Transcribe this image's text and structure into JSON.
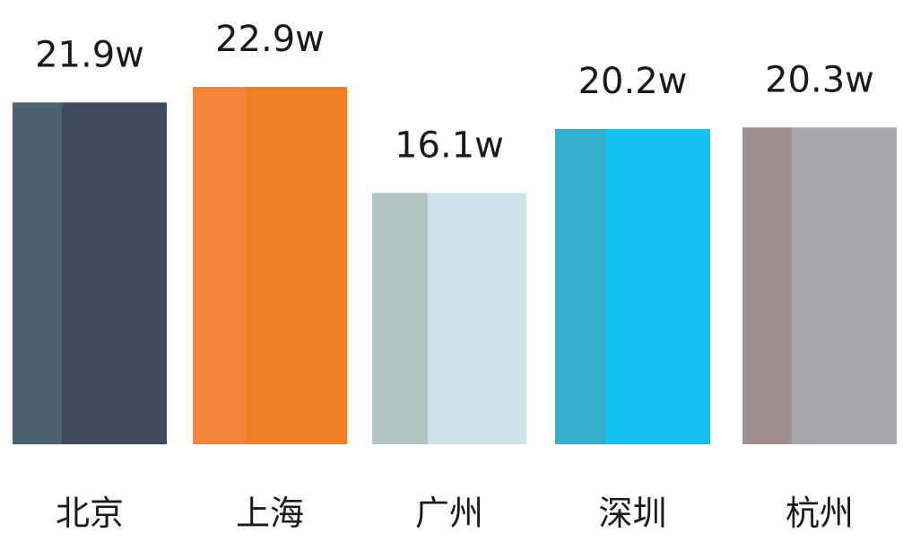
{
  "chart_data": {
    "type": "bar",
    "title": "",
    "xlabel": "",
    "ylabel": "",
    "unit_suffix": "w",
    "categories": [
      "北京",
      "上海",
      "广州",
      "深圳",
      "杭州"
    ],
    "values": [
      21.9,
      22.9,
      16.1,
      20.2,
      20.3
    ],
    "value_labels": [
      "21.9w",
      "22.9w",
      "16.1w",
      "20.2w",
      "20.3w"
    ],
    "bar_colors": [
      {
        "main": "#3e4a5f",
        "shade": "#4b6270"
      },
      {
        "main": "#ee7f22",
        "shade": "#f3863b"
      },
      {
        "main": "#cae1e5",
        "shade": "#b1c5c4"
      },
      {
        "main": "#14c1f5",
        "shade": "#33afcc"
      },
      {
        "main": "#a6a8ac",
        "shade": "#9d9191"
      }
    ],
    "ylim": [
      0,
      22.9
    ],
    "grid": false,
    "legend": "none"
  }
}
